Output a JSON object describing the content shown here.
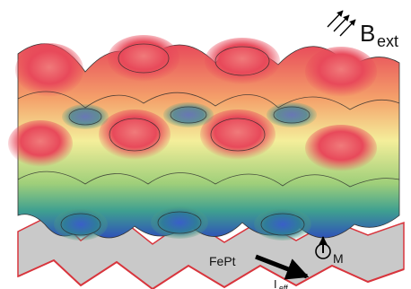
{
  "labels": {
    "field_symbol": "B",
    "field_subscript": "ext",
    "material": "FePt",
    "magnetization": "M",
    "current_symbol": "I",
    "current_subscript": "eff"
  },
  "colors": {
    "surface_high": "#e8495a",
    "surface_mid": "#f4ee9a",
    "surface_low": "#2f52b8",
    "surface_lowmid": "#5fb07e",
    "slab_top": "#c9c9c9",
    "slab_edge": "#d8353d",
    "arrow": "#000000"
  },
  "icons": [
    "field-arrows-icon",
    "magnetization-vector-icon",
    "current-arrow-icon"
  ]
}
